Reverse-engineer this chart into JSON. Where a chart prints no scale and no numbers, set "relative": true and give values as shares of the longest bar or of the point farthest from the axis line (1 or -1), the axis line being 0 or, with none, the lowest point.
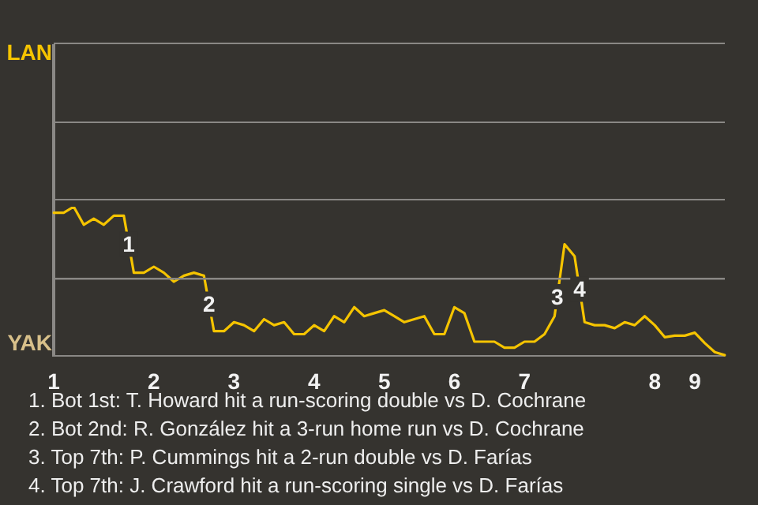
{
  "chart_data": {
    "type": "line",
    "relative": true,
    "categories": [
      "1",
      null,
      null,
      null,
      null,
      null,
      null,
      null,
      null,
      null,
      "2",
      null,
      null,
      null,
      null,
      null,
      null,
      null,
      "3",
      null,
      null,
      null,
      null,
      null,
      null,
      null,
      "4",
      null,
      null,
      null,
      null,
      null,
      null,
      "5",
      null,
      null,
      null,
      null,
      null,
      null,
      "6",
      null,
      null,
      null,
      null,
      null,
      null,
      "7",
      null,
      null,
      null,
      null,
      null,
      null,
      null,
      null,
      null,
      null,
      null,
      null,
      "8",
      null,
      null,
      null,
      "9",
      null,
      null,
      null
    ],
    "series": [
      {
        "color": "#f5c400",
        "values": [
          0.96,
          0.96,
          1,
          0.88,
          0.92,
          0.88,
          0.94,
          0.94,
          0.56,
          0.56,
          0.6,
          0.56,
          0.5,
          0.54,
          0.56,
          0.54,
          0.17,
          0.17,
          0.23,
          0.21,
          0.17,
          0.25,
          0.21,
          0.23,
          0.15,
          0.15,
          0.21,
          0.17,
          0.27,
          0.23,
          0.33,
          0.27,
          0.29,
          0.31,
          0.27,
          0.23,
          0.25,
          0.27,
          0.15,
          0.15,
          0.33,
          0.29,
          0.1,
          0.1,
          0.1,
          0.06,
          0.06,
          0.1,
          0.1,
          0.15,
          0.27,
          0.75,
          0.67,
          0.23,
          0.21,
          0.21,
          0.19,
          0.23,
          0.21,
          0.27,
          0.21,
          0.13,
          0.14,
          0.14,
          0.16,
          0.09,
          0.03,
          0.01
        ]
      }
    ],
    "ref_lines": [
      {
        "axis": "y",
        "value": 0.52,
        "color": "#8a8885"
      }
    ],
    "legend": false,
    "marker": "none",
    "line_style": "solid",
    "annotations": [
      "LAN",
      "YAK",
      {
        "text": "1",
        "y": 0.75
      },
      {
        "text": "2",
        "y": 0.35
      },
      {
        "text": "3",
        "y": 0.4
      },
      {
        "text": "4",
        "y": 0.45
      },
      "1. Bot 1st: T. Howard hit a run-scoring double vs D. Cochrane",
      "2. Bot 2nd: R. González hit a 3-run home run vs D. Cochrane",
      "3. Top 7th: P. Cummings hit a 2-run double vs D. Farías",
      "4. Top 7th: J. Crawford hit a run-scoring single vs D. Farías"
    ]
  }
}
